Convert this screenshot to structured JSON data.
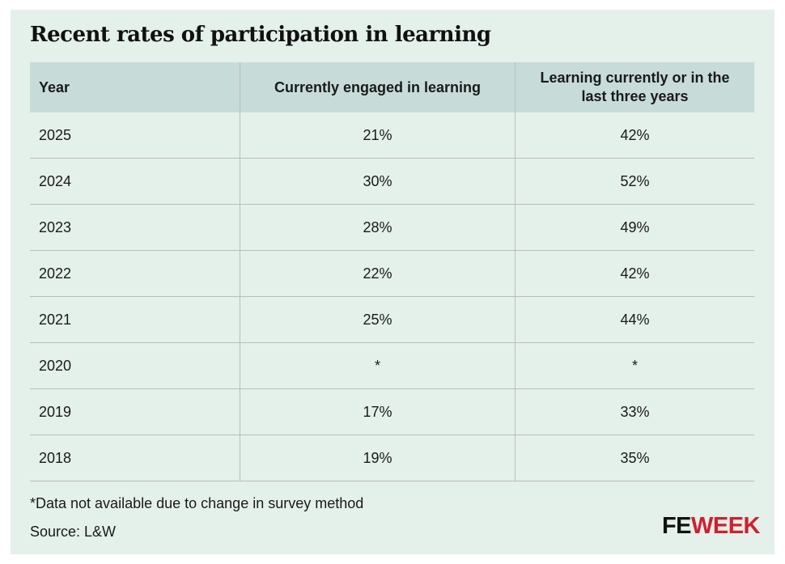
{
  "title": "Recent rates of participation in learning",
  "chart_data": {
    "type": "table",
    "title": "Recent rates of participation in learning",
    "columns": [
      "Year",
      "Currently engaged in learning",
      "Learning currently or in the last three years"
    ],
    "rows": [
      [
        "2025",
        "21%",
        "42%"
      ],
      [
        "2024",
        "30%",
        "52%"
      ],
      [
        "2023",
        "28%",
        "49%"
      ],
      [
        "2022",
        "22%",
        "42%"
      ],
      [
        "2021",
        "25%",
        "44%"
      ],
      [
        "2020",
        "*",
        "*"
      ],
      [
        "2019",
        "17%",
        "33%"
      ],
      [
        "2018",
        "19%",
        "35%"
      ]
    ]
  },
  "footnote": "*Data not available due to change in survey method",
  "source": "Source: L&W",
  "logo": {
    "part1": "FE",
    "part2": "WEEK"
  },
  "colors": {
    "background": "#e4f0ea",
    "header": "#c7dcd9",
    "brand_red": "#d0202e"
  }
}
